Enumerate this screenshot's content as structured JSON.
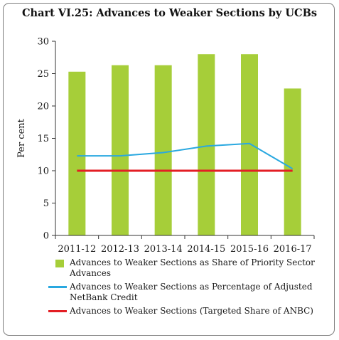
{
  "chart_data": {
    "type": "bar",
    "title": "Chart VI.25: Advances to Weaker Sections by UCBs",
    "ylabel": "Per cent",
    "xlabel": "",
    "ylim": [
      0,
      30
    ],
    "yticks": [
      0,
      5,
      10,
      15,
      20,
      25,
      30
    ],
    "categories": [
      "2011-12",
      "2012-13",
      "2013-14",
      "2014-15",
      "2015-16",
      "2016-17"
    ],
    "series": [
      {
        "name": "Advances to Weaker Sections as Share of Priority Sector Advances",
        "type": "bar",
        "color": "#a6ce39",
        "values": [
          25.3,
          26.3,
          26.3,
          28.0,
          28.0,
          22.7
        ]
      },
      {
        "name": "Advances to Weaker Sections as Percentage of Adjusted NetBank Credit",
        "type": "line",
        "color": "#29a8e0",
        "values": [
          12.3,
          12.3,
          12.8,
          13.8,
          14.2,
          10.3
        ]
      },
      {
        "name": "Advances to Weaker Sections (Targeted Share of ANBC)",
        "type": "line",
        "color": "#e31e24",
        "values": [
          10,
          10,
          10,
          10,
          10,
          10
        ]
      }
    ],
    "grid": false,
    "legend_position": "bottom"
  }
}
